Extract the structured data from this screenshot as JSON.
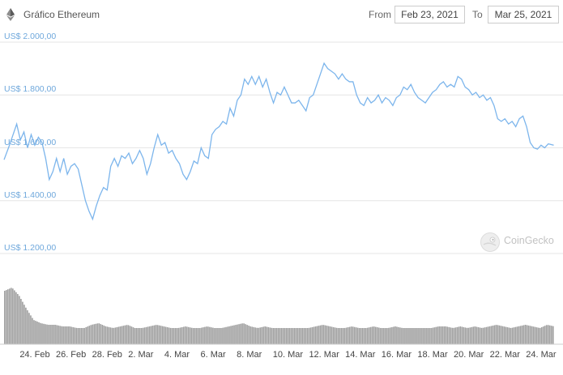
{
  "header": {
    "title": "Gráfico Ethereum",
    "from_label": "From",
    "from_date": "Feb 23, 2021",
    "to_label": "To",
    "to_date": "Mar 25, 2021"
  },
  "watermark": {
    "text": "CoinGecko",
    "icon": "coingecko-logo"
  },
  "colors": {
    "price_line": "#7cb5ec",
    "volume": "#9e9e9e",
    "grid": "#e6e6e6",
    "axis_label": "#6fa8dc"
  },
  "chart_data": {
    "type": "line",
    "title": "",
    "xlabel": "",
    "ylabel": "",
    "ylim": [
      1200,
      2000
    ],
    "y_ticks": [
      {
        "value": 2000,
        "label": "US$ 2.000,00"
      },
      {
        "value": 1800,
        "label": "US$ 1.800,00"
      },
      {
        "value": 1600,
        "label": "US$ 1.600,00"
      },
      {
        "value": 1400,
        "label": "US$ 1.400,00"
      },
      {
        "value": 1200,
        "label": "US$ 1.200,00"
      }
    ],
    "x_range": [
      0,
      30.6
    ],
    "x_ticks": [
      {
        "day": 1,
        "label": "24. Feb"
      },
      {
        "day": 3,
        "label": "26. Feb"
      },
      {
        "day": 5,
        "label": "28. Feb"
      },
      {
        "day": 7,
        "label": "2. Mar"
      },
      {
        "day": 9,
        "label": "4. Mar"
      },
      {
        "day": 11,
        "label": "6. Mar"
      },
      {
        "day": 13,
        "label": "8. Mar"
      },
      {
        "day": 15,
        "label": "10. Mar"
      },
      {
        "day": 17,
        "label": "12. Mar"
      },
      {
        "day": 19,
        "label": "14. Mar"
      },
      {
        "day": 21,
        "label": "16. Mar"
      },
      {
        "day": 23,
        "label": "18. Mar"
      },
      {
        "day": 25,
        "label": "20. Mar"
      },
      {
        "day": 27,
        "label": "22. Mar"
      },
      {
        "day": 29,
        "label": "24. Mar"
      }
    ],
    "grid": true,
    "legend": "none",
    "series": [
      {
        "values": [
          [
            0.0,
            1555
          ],
          [
            0.3,
            1610
          ],
          [
            0.5,
            1650
          ],
          [
            0.7,
            1690
          ],
          [
            0.9,
            1630
          ],
          [
            1.1,
            1660
          ],
          [
            1.3,
            1600
          ],
          [
            1.5,
            1650
          ],
          [
            1.7,
            1610
          ],
          [
            1.9,
            1640
          ],
          [
            2.1,
            1620
          ],
          [
            2.3,
            1560
          ],
          [
            2.5,
            1480
          ],
          [
            2.7,
            1510
          ],
          [
            2.9,
            1560
          ],
          [
            3.1,
            1510
          ],
          [
            3.3,
            1560
          ],
          [
            3.5,
            1500
          ],
          [
            3.7,
            1530
          ],
          [
            3.9,
            1540
          ],
          [
            4.1,
            1520
          ],
          [
            4.3,
            1460
          ],
          [
            4.5,
            1400
          ],
          [
            4.7,
            1360
          ],
          [
            4.9,
            1330
          ],
          [
            5.1,
            1380
          ],
          [
            5.3,
            1420
          ],
          [
            5.5,
            1450
          ],
          [
            5.7,
            1440
          ],
          [
            5.9,
            1530
          ],
          [
            6.1,
            1560
          ],
          [
            6.3,
            1530
          ],
          [
            6.5,
            1570
          ],
          [
            6.7,
            1560
          ],
          [
            6.9,
            1580
          ],
          [
            7.1,
            1540
          ],
          [
            7.3,
            1560
          ],
          [
            7.5,
            1590
          ],
          [
            7.7,
            1560
          ],
          [
            7.9,
            1500
          ],
          [
            8.1,
            1540
          ],
          [
            8.3,
            1600
          ],
          [
            8.5,
            1650
          ],
          [
            8.7,
            1610
          ],
          [
            8.9,
            1620
          ],
          [
            9.1,
            1580
          ],
          [
            9.3,
            1590
          ],
          [
            9.5,
            1560
          ],
          [
            9.7,
            1540
          ],
          [
            9.9,
            1500
          ],
          [
            10.1,
            1480
          ],
          [
            10.3,
            1510
          ],
          [
            10.5,
            1550
          ],
          [
            10.7,
            1540
          ],
          [
            10.9,
            1600
          ],
          [
            11.1,
            1570
          ],
          [
            11.3,
            1560
          ],
          [
            11.5,
            1650
          ],
          [
            11.7,
            1670
          ],
          [
            11.9,
            1680
          ],
          [
            12.1,
            1700
          ],
          [
            12.3,
            1690
          ],
          [
            12.5,
            1750
          ],
          [
            12.7,
            1720
          ],
          [
            12.9,
            1780
          ],
          [
            13.1,
            1800
          ],
          [
            13.3,
            1860
          ],
          [
            13.5,
            1840
          ],
          [
            13.7,
            1870
          ],
          [
            13.9,
            1840
          ],
          [
            14.1,
            1870
          ],
          [
            14.3,
            1830
          ],
          [
            14.5,
            1860
          ],
          [
            14.7,
            1810
          ],
          [
            14.9,
            1770
          ],
          [
            15.1,
            1810
          ],
          [
            15.3,
            1800
          ],
          [
            15.5,
            1830
          ],
          [
            15.7,
            1800
          ],
          [
            15.9,
            1770
          ],
          [
            16.1,
            1770
          ],
          [
            16.3,
            1780
          ],
          [
            16.5,
            1760
          ],
          [
            16.7,
            1740
          ],
          [
            16.9,
            1790
          ],
          [
            17.1,
            1800
          ],
          [
            17.3,
            1840
          ],
          [
            17.5,
            1880
          ],
          [
            17.7,
            1920
          ],
          [
            17.9,
            1900
          ],
          [
            18.1,
            1890
          ],
          [
            18.3,
            1880
          ],
          [
            18.5,
            1860
          ],
          [
            18.7,
            1880
          ],
          [
            18.9,
            1860
          ],
          [
            19.1,
            1850
          ],
          [
            19.3,
            1850
          ],
          [
            19.5,
            1800
          ],
          [
            19.7,
            1770
          ],
          [
            19.9,
            1760
          ],
          [
            20.1,
            1790
          ],
          [
            20.3,
            1770
          ],
          [
            20.5,
            1780
          ],
          [
            20.7,
            1800
          ],
          [
            20.9,
            1770
          ],
          [
            21.1,
            1790
          ],
          [
            21.3,
            1780
          ],
          [
            21.5,
            1760
          ],
          [
            21.7,
            1790
          ],
          [
            21.9,
            1800
          ],
          [
            22.1,
            1830
          ],
          [
            22.3,
            1820
          ],
          [
            22.5,
            1840
          ],
          [
            22.7,
            1810
          ],
          [
            22.9,
            1790
          ],
          [
            23.1,
            1780
          ],
          [
            23.3,
            1770
          ],
          [
            23.5,
            1790
          ],
          [
            23.7,
            1810
          ],
          [
            23.9,
            1820
          ],
          [
            24.1,
            1840
          ],
          [
            24.3,
            1850
          ],
          [
            24.5,
            1830
          ],
          [
            24.7,
            1840
          ],
          [
            24.9,
            1830
          ],
          [
            25.1,
            1870
          ],
          [
            25.3,
            1860
          ],
          [
            25.5,
            1830
          ],
          [
            25.7,
            1820
          ],
          [
            25.9,
            1800
          ],
          [
            26.1,
            1810
          ],
          [
            26.3,
            1790
          ],
          [
            26.5,
            1800
          ],
          [
            26.7,
            1780
          ],
          [
            26.9,
            1790
          ],
          [
            27.1,
            1760
          ],
          [
            27.3,
            1710
          ],
          [
            27.5,
            1700
          ],
          [
            27.7,
            1710
          ],
          [
            27.9,
            1690
          ],
          [
            28.1,
            1700
          ],
          [
            28.3,
            1680
          ],
          [
            28.5,
            1710
          ],
          [
            28.7,
            1720
          ],
          [
            28.9,
            1680
          ],
          [
            29.1,
            1620
          ],
          [
            29.3,
            1600
          ],
          [
            29.5,
            1595
          ],
          [
            29.7,
            1610
          ],
          [
            29.9,
            1600
          ],
          [
            30.1,
            1615
          ],
          [
            30.4,
            1610
          ]
        ]
      }
    ],
    "volume": {
      "values": [
        [
          0.0,
          33
        ],
        [
          0.4,
          35
        ],
        [
          0.8,
          30
        ],
        [
          1.2,
          22
        ],
        [
          1.6,
          15
        ],
        [
          2.0,
          13
        ],
        [
          2.4,
          12
        ],
        [
          2.8,
          12
        ],
        [
          3.2,
          11
        ],
        [
          3.6,
          11
        ],
        [
          4.0,
          10
        ],
        [
          4.4,
          10
        ],
        [
          4.8,
          12
        ],
        [
          5.2,
          13
        ],
        [
          5.6,
          11
        ],
        [
          6.0,
          10
        ],
        [
          6.4,
          11
        ],
        [
          6.8,
          12
        ],
        [
          7.2,
          10
        ],
        [
          7.6,
          10
        ],
        [
          8.0,
          11
        ],
        [
          8.4,
          12
        ],
        [
          8.8,
          11
        ],
        [
          9.2,
          10
        ],
        [
          9.6,
          10
        ],
        [
          10.0,
          11
        ],
        [
          10.4,
          10
        ],
        [
          10.8,
          10
        ],
        [
          11.2,
          11
        ],
        [
          11.6,
          10
        ],
        [
          12.0,
          10
        ],
        [
          12.4,
          11
        ],
        [
          12.8,
          12
        ],
        [
          13.2,
          13
        ],
        [
          13.6,
          11
        ],
        [
          14.0,
          10
        ],
        [
          14.4,
          11
        ],
        [
          14.8,
          10
        ],
        [
          15.2,
          10
        ],
        [
          15.6,
          10
        ],
        [
          16.0,
          10
        ],
        [
          16.4,
          10
        ],
        [
          16.8,
          10
        ],
        [
          17.2,
          11
        ],
        [
          17.6,
          12
        ],
        [
          18.0,
          11
        ],
        [
          18.4,
          10
        ],
        [
          18.8,
          10
        ],
        [
          19.2,
          11
        ],
        [
          19.6,
          10
        ],
        [
          20.0,
          10
        ],
        [
          20.4,
          11
        ],
        [
          20.8,
          10
        ],
        [
          21.2,
          10
        ],
        [
          21.6,
          11
        ],
        [
          22.0,
          10
        ],
        [
          22.4,
          10
        ],
        [
          22.8,
          10
        ],
        [
          23.2,
          10
        ],
        [
          23.6,
          10
        ],
        [
          24.0,
          11
        ],
        [
          24.4,
          11
        ],
        [
          24.8,
          10
        ],
        [
          25.2,
          11
        ],
        [
          25.6,
          10
        ],
        [
          26.0,
          11
        ],
        [
          26.4,
          10
        ],
        [
          26.8,
          11
        ],
        [
          27.2,
          12
        ],
        [
          27.6,
          11
        ],
        [
          28.0,
          10
        ],
        [
          28.4,
          11
        ],
        [
          28.8,
          12
        ],
        [
          29.2,
          11
        ],
        [
          29.6,
          10
        ],
        [
          30.0,
          12
        ],
        [
          30.4,
          11
        ]
      ]
    }
  }
}
